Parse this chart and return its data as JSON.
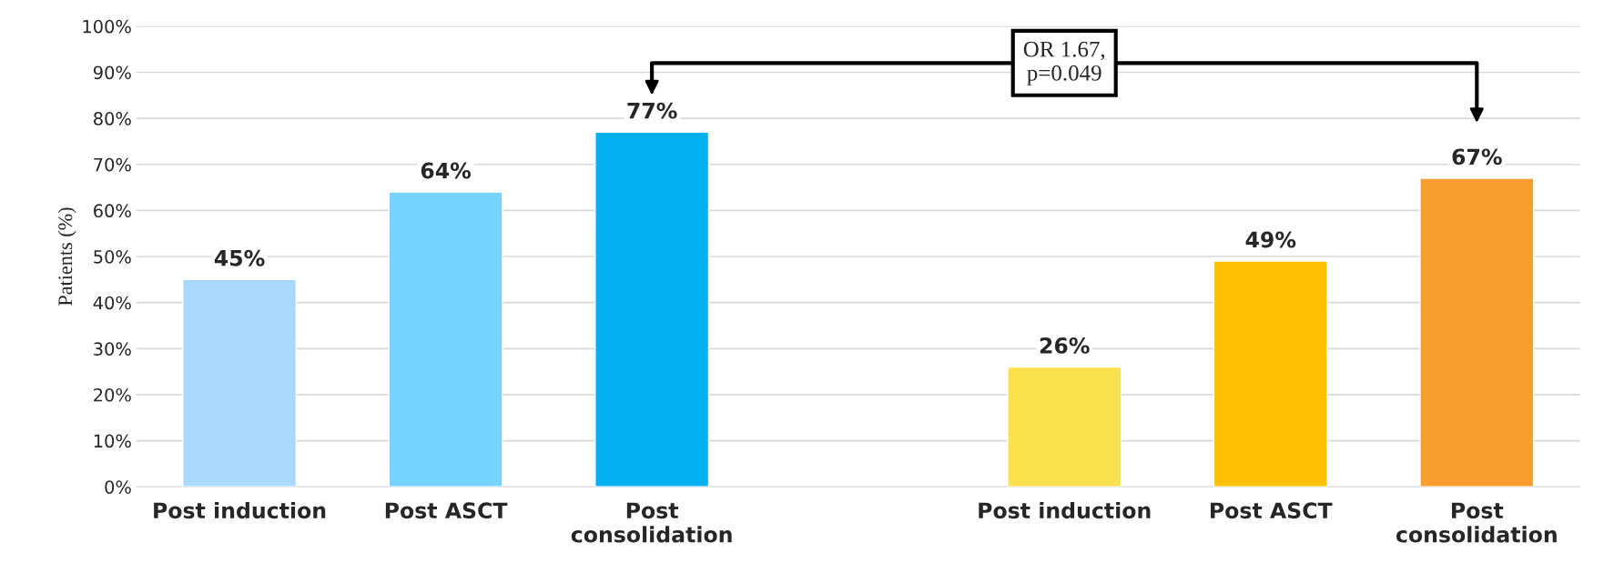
{
  "chart_data": {
    "type": "bar",
    "ylabel": "Patients (%)",
    "categories": [
      "Post induction",
      "Post ASCT",
      "Post consolidation",
      null,
      "Post induction",
      "Post ASCT",
      "Post consolidation"
    ],
    "values": [
      45,
      64,
      77,
      null,
      26,
      49,
      67
    ],
    "colors": [
      "#a9d9fe",
      "#76d3fe",
      "#02b0f0",
      "#ffffff",
      "#fae04c",
      "#fdc002",
      "#f99d2e"
    ],
    "value_labels": [
      "45%",
      "64%",
      "77%",
      null,
      "26%",
      "49%",
      "67%"
    ],
    "ylim": [
      0,
      100
    ],
    "yticks": [
      {
        "value": 0,
        "label": "0%"
      },
      {
        "value": 10,
        "label": "10%"
      },
      {
        "value": 20,
        "label": "20%"
      },
      {
        "value": 30,
        "label": "30%"
      },
      {
        "value": 40,
        "label": "40%"
      },
      {
        "value": 50,
        "label": "50%"
      },
      {
        "value": 60,
        "label": "60%"
      },
      {
        "value": 70,
        "label": "70%"
      },
      {
        "value": 80,
        "label": "80%"
      },
      {
        "value": 90,
        "label": "90%"
      },
      {
        "value": 100,
        "label": "100%"
      }
    ],
    "grid": "y",
    "annotations": [
      "OR 1.67,\np=0.049"
    ]
  }
}
